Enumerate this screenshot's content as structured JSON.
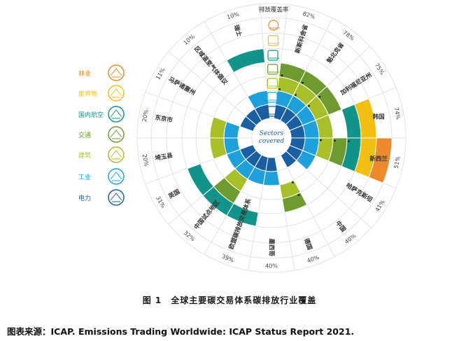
{
  "legend": [
    {
      "key": "forestry",
      "label": "林业",
      "color": "#ef8a2c",
      "icon": "tree-icon"
    },
    {
      "key": "waste",
      "label": "废弃物",
      "color": "#f2c012",
      "icon": "waste-icon"
    },
    {
      "key": "aviation",
      "label": "国内航空",
      "color": "#12948a",
      "icon": "airplane-icon"
    },
    {
      "key": "transport",
      "label": "交通",
      "color": "#6f9a2f",
      "icon": "truck-icon"
    },
    {
      "key": "building",
      "label": "建筑",
      "color": "#a8bf2a",
      "icon": "house-icon"
    },
    {
      "key": "industry",
      "label": "工业",
      "color": "#1ea0dc",
      "icon": "factory-icon"
    },
    {
      "key": "power",
      "label": "电力",
      "color": "#1a5fa3",
      "icon": "power-tower-icon"
    }
  ],
  "ring_order": [
    "power",
    "industry",
    "building",
    "transport",
    "aviation",
    "waste",
    "forestry"
  ],
  "center_label": [
    "Sectors",
    "covered"
  ],
  "coverage_header": "排放覆盖率",
  "jurisdictions": [
    {
      "name": "新斯科舍省",
      "coverage": "82%",
      "sectors": [
        "power",
        "industry",
        "building",
        "transport"
      ],
      "dots": [
        "building",
        "transport"
      ]
    },
    {
      "name": "魁北克省",
      "coverage": "78%",
      "sectors": [
        "power",
        "industry",
        "building",
        "transport"
      ],
      "dots": [
        "building",
        "transport"
      ]
    },
    {
      "name": "加利福尼亚州",
      "coverage": "75%",
      "sectors": [
        "power",
        "industry",
        "building",
        "transport"
      ],
      "dots": [
        "building",
        "transport"
      ]
    },
    {
      "name": "韩国",
      "coverage": "74%",
      "sectors": [
        "power",
        "industry",
        "building",
        "aviation",
        "waste"
      ],
      "dots": []
    },
    {
      "name": "新西兰",
      "coverage": "51%",
      "sectors": [
        "power",
        "industry",
        "building",
        "transport",
        "aviation",
        "waste",
        "forestry"
      ],
      "dots": [
        "building",
        "transport",
        "aviation"
      ]
    },
    {
      "name": "哈萨克斯坦",
      "coverage": "41%",
      "sectors": [
        "power",
        "industry"
      ],
      "dots": []
    },
    {
      "name": "中国",
      "coverage": "40%",
      "sectors": [
        "power"
      ],
      "dots": []
    },
    {
      "name": "德国",
      "coverage": "40%",
      "sectors": [
        "building",
        "transport"
      ],
      "dots": [
        "building",
        "transport"
      ]
    },
    {
      "name": "墨西哥",
      "coverage": "40%",
      "sectors": [
        "power",
        "industry"
      ],
      "dots": []
    },
    {
      "name": "欧盟碳排放交易体系",
      "coverage": "39%",
      "sectors": [
        "power",
        "industry",
        "aviation"
      ],
      "dots": []
    },
    {
      "name": "中国试点地区",
      "coverage": "32%",
      "sectors": [
        "power",
        "industry",
        "building",
        "transport",
        "aviation"
      ],
      "dots": []
    },
    {
      "name": "英国",
      "coverage": "31%",
      "sectors": [
        "power",
        "industry",
        "aviation"
      ],
      "dots": []
    },
    {
      "name": "埼玉县",
      "coverage": "20%",
      "sectors": [
        "industry",
        "building"
      ],
      "dots": []
    },
    {
      "name": "东京市",
      "coverage": "20%",
      "sectors": [
        "industry",
        "building"
      ],
      "dots": []
    },
    {
      "name": "马萨诸塞州",
      "coverage": "11%",
      "sectors": [
        "power"
      ],
      "dots": []
    },
    {
      "name": "区域温室气体倡议",
      "coverage": "10%",
      "sectors": [
        "power"
      ],
      "dots": []
    },
    {
      "name": "瑞士",
      "coverage": "10%",
      "sectors": [
        "power",
        "industry",
        "aviation"
      ],
      "dots": []
    }
  ],
  "caption": "图 1　全球主要碳交易体系碳排放行业覆盖",
  "source": "图表来源：ICAP. Emissions Trading Worldwide: ICAP Status Report 2021."
}
